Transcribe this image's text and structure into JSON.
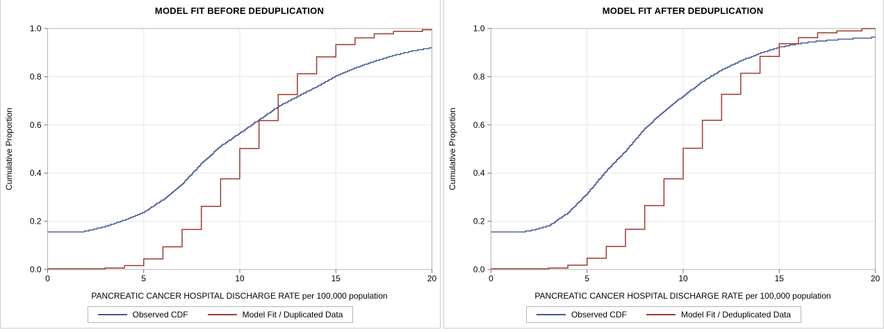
{
  "chart_data": [
    {
      "type": "line",
      "title": "MODEL FIT BEFORE DEDUPLICATION",
      "xlabel": "PANCREATIC CANCER HOSPITAL DISCHARGE RATE per 100,000 population",
      "ylabel": "Cumulative Proportion",
      "xlim": [
        0,
        20
      ],
      "ylim": [
        0,
        1
      ],
      "x_ticks": [
        0,
        5,
        10,
        15,
        20
      ],
      "y_ticks": [
        0,
        0.2,
        0.4,
        0.6,
        0.8,
        1
      ],
      "grid": true,
      "legend_position": "bottom",
      "style": {
        "frame_color": "#b3b3b3",
        "grid_color": "#e5e5e5",
        "tick_color": "#707070"
      },
      "series": [
        {
          "name": "Observed CDF",
          "type": "ecdf",
          "color": "#445694",
          "width": 1.4,
          "points": [
            [
              0,
              0.155
            ],
            [
              1.6,
              0.155
            ],
            [
              2,
              0.159
            ],
            [
              3,
              0.178
            ],
            [
              4,
              0.205
            ],
            [
              5,
              0.237
            ],
            [
              6,
              0.29
            ],
            [
              7,
              0.355
            ],
            [
              8,
              0.44
            ],
            [
              9,
              0.512
            ],
            [
              10,
              0.566
            ],
            [
              11,
              0.621
            ],
            [
              12,
              0.676
            ],
            [
              13,
              0.718
            ],
            [
              14,
              0.758
            ],
            [
              15,
              0.802
            ],
            [
              16,
              0.836
            ],
            [
              17,
              0.864
            ],
            [
              18,
              0.888
            ],
            [
              19,
              0.907
            ],
            [
              20,
              0.92
            ]
          ]
        },
        {
          "name": "Model Fit / Duplicated Data",
          "type": "step",
          "color": "#9e3a2e",
          "width": 1.5,
          "start": 0.003,
          "points": [
            [
              3,
              0.006
            ],
            [
              4,
              0.016
            ],
            [
              5,
              0.044
            ],
            [
              6,
              0.094
            ],
            [
              7,
              0.166
            ],
            [
              8,
              0.262
            ],
            [
              9,
              0.376
            ],
            [
              10,
              0.502
            ],
            [
              11,
              0.618
            ],
            [
              12,
              0.726
            ],
            [
              13,
              0.812
            ],
            [
              14,
              0.882
            ],
            [
              15,
              0.933
            ],
            [
              16,
              0.961
            ],
            [
              17,
              0.978
            ],
            [
              18,
              0.988
            ],
            [
              19.5,
              0.995
            ]
          ]
        }
      ]
    },
    {
      "type": "line",
      "title": "MODEL FIT AFTER DEDUPLICATION",
      "xlabel": "PANCREATIC CANCER HOSPITAL DISCHARGE RATE per 100,000 population",
      "ylabel": "Cumulative Proportion",
      "xlim": [
        0,
        20
      ],
      "ylim": [
        0,
        1
      ],
      "x_ticks": [
        0,
        5,
        10,
        15,
        20
      ],
      "y_ticks": [
        0,
        0.2,
        0.4,
        0.6,
        0.8,
        1
      ],
      "grid": true,
      "legend_position": "bottom",
      "style": {
        "frame_color": "#b3b3b3",
        "grid_color": "#e5e5e5",
        "tick_color": "#707070"
      },
      "series": [
        {
          "name": "Observed CDF",
          "type": "ecdf",
          "color": "#445694",
          "width": 1.4,
          "points": [
            [
              0,
              0.155
            ],
            [
              1.4,
              0.155
            ],
            [
              2,
              0.16
            ],
            [
              3,
              0.181
            ],
            [
              4,
              0.235
            ],
            [
              5,
              0.315
            ],
            [
              6,
              0.41
            ],
            [
              7,
              0.492
            ],
            [
              8,
              0.585
            ],
            [
              9,
              0.657
            ],
            [
              10,
              0.72
            ],
            [
              11,
              0.78
            ],
            [
              12,
              0.828
            ],
            [
              13,
              0.866
            ],
            [
              14,
              0.897
            ],
            [
              15,
              0.922
            ],
            [
              16,
              0.937
            ],
            [
              17,
              0.947
            ],
            [
              18,
              0.954
            ],
            [
              19,
              0.959
            ],
            [
              20,
              0.963
            ]
          ]
        },
        {
          "name": "Model Fit / Deduplicated Data",
          "type": "step",
          "color": "#9e3a2e",
          "width": 1.5,
          "start": 0.003,
          "points": [
            [
              3,
              0.006
            ],
            [
              4,
              0.018
            ],
            [
              5,
              0.047
            ],
            [
              6,
              0.096
            ],
            [
              7,
              0.167
            ],
            [
              8,
              0.265
            ],
            [
              9,
              0.376
            ],
            [
              10,
              0.503
            ],
            [
              11,
              0.619
            ],
            [
              12,
              0.727
            ],
            [
              13,
              0.814
            ],
            [
              14,
              0.884
            ],
            [
              15,
              0.937
            ],
            [
              16,
              0.962
            ],
            [
              17,
              0.982
            ],
            [
              18,
              0.99
            ],
            [
              19.3,
              0.999
            ]
          ]
        }
      ]
    }
  ]
}
